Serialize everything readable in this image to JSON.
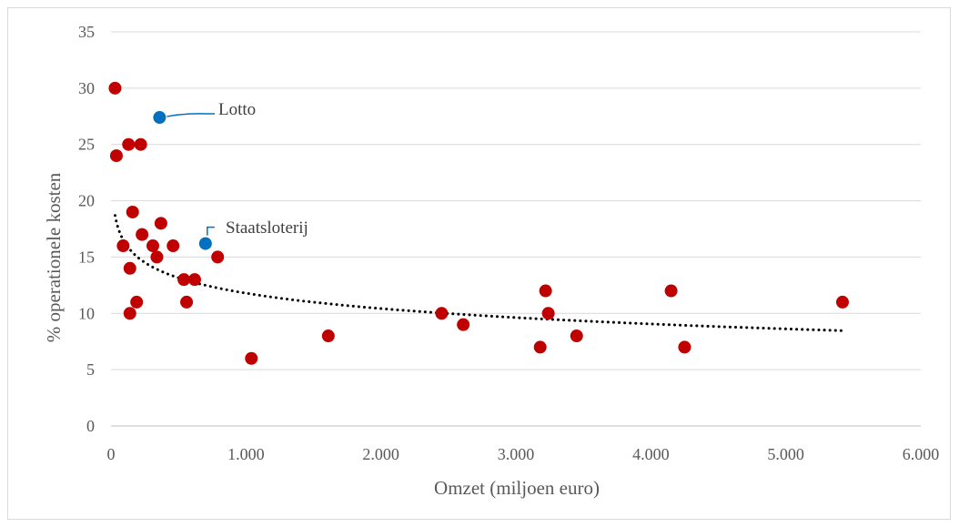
{
  "chart_data": {
    "type": "scatter",
    "title": "",
    "xlabel": "Omzet (miljoen euro)",
    "ylabel": "% operationele kosten",
    "xlim": [
      0,
      6000
    ],
    "ylim": [
      0,
      35
    ],
    "x_ticks": [
      0,
      1000,
      2000,
      3000,
      4000,
      5000,
      6000
    ],
    "x_tick_labels": [
      "0",
      "1.000",
      "2.000",
      "3.000",
      "4.000",
      "5.000",
      "6.000"
    ],
    "y_ticks": [
      0,
      5,
      10,
      15,
      20,
      25,
      30,
      35
    ],
    "y_tick_labels": [
      "0",
      "5",
      "10",
      "15",
      "20",
      "25",
      "30",
      "35"
    ],
    "grid": true,
    "legend": "none",
    "colors": {
      "points": "#c00000",
      "highlight": "#0070c0",
      "trend": "#000000",
      "grid": "#d9d9d9"
    },
    "series": [
      {
        "points": [
          [
            30,
            30
          ],
          [
            40,
            24
          ],
          [
            130,
            25
          ],
          [
            220,
            25
          ],
          [
            90,
            16
          ],
          [
            140,
            14
          ],
          [
            160,
            19
          ],
          [
            140,
            10
          ],
          [
            190,
            11
          ],
          [
            230,
            17
          ],
          [
            310,
            16
          ],
          [
            340,
            15
          ],
          [
            370,
            18
          ],
          [
            460,
            16
          ],
          [
            540,
            13
          ],
          [
            560,
            11
          ],
          [
            620,
            13
          ],
          [
            790,
            15
          ],
          [
            1040,
            6
          ],
          [
            1610,
            8
          ],
          [
            2450,
            10
          ],
          [
            2610,
            9
          ],
          [
            3180,
            7
          ],
          [
            3220,
            12
          ],
          [
            3240,
            10
          ],
          [
            3450,
            8
          ],
          [
            4150,
            12
          ],
          [
            4250,
            7
          ],
          [
            5420,
            11
          ]
        ]
      },
      {
        "points": [
          [
            360,
            27.4
          ],
          [
            700,
            16.2
          ]
        ],
        "labels": [
          "Lotto",
          "Staatsloterij"
        ]
      }
    ],
    "trendline": {
      "type": "logarithmic",
      "intercept": 25.4,
      "slope": -1.97,
      "x_from": 30,
      "x_to": 5420
    }
  }
}
